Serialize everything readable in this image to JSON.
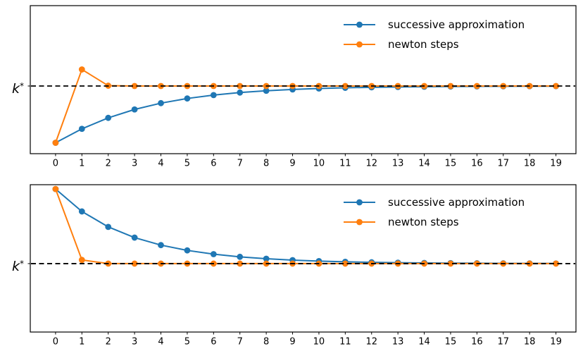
{
  "colors": {
    "successive_approximation": "#1f77b4",
    "newton_steps": "#ff7f0e",
    "reference_line": "#000000",
    "axes": "#000000",
    "background": "#ffffff"
  },
  "chart_data": [
    {
      "type": "line",
      "subplot": "top",
      "title": "",
      "xlabel": "",
      "ylabel": "k*",
      "ylabel_base": "k",
      "ylabel_sup": "*",
      "x": [
        0,
        1,
        2,
        3,
        4,
        5,
        6,
        7,
        8,
        9,
        10,
        11,
        12,
        13,
        14,
        15,
        16,
        17,
        18,
        19
      ],
      "series": [
        {
          "name": "successive approximation",
          "color_key": "successive_approximation",
          "marker": "circle",
          "values": [
            0.8,
            1.0412,
            1.232,
            1.3779,
            1.4873,
            1.5683,
            1.6277,
            1.671,
            1.7025,
            1.7254,
            1.7419,
            1.7538,
            1.7624,
            1.7686,
            1.7731,
            1.7764,
            1.7787,
            1.7804,
            1.7816,
            1.7824
          ]
        },
        {
          "name": "newton steps",
          "color_key": "newton_steps",
          "marker": "circle",
          "values": [
            0.8,
            2.0719,
            1.7903,
            1.7847,
            1.7847,
            1.7847,
            1.7847,
            1.7847,
            1.7847,
            1.7847,
            1.7847,
            1.7847,
            1.7847,
            1.7847,
            1.7847,
            1.7847,
            1.7847,
            1.7847,
            1.7847,
            1.7847
          ]
        }
      ],
      "reference_line": {
        "value": 1.7847,
        "style": "dashed",
        "color": "#000000",
        "label": "k*"
      },
      "xlim": [
        -0.96,
        19.76
      ],
      "ylim": [
        0.61,
        3.18
      ],
      "grid": false,
      "legend": {
        "position": "upper right",
        "frame": false,
        "entries": [
          "successive approximation",
          "newton steps"
        ]
      }
    },
    {
      "type": "line",
      "subplot": "bottom",
      "title": "",
      "xlabel": "",
      "ylabel": "k*",
      "ylabel_base": "k",
      "ylabel_sup": "*",
      "x": [
        0,
        1,
        2,
        3,
        4,
        5,
        6,
        7,
        8,
        9,
        10,
        11,
        12,
        13,
        14,
        15,
        16,
        17,
        18,
        19
      ],
      "series": [
        {
          "name": "successive approximation",
          "color_key": "successive_approximation",
          "marker": "circle",
          "values": [
            3.0,
            2.6342,
            2.3828,
            2.2082,
            2.0859,
            2.0,
            1.9387,
            1.895,
            1.8639,
            1.8416,
            1.8256,
            1.8141,
            1.8059,
            1.7999,
            1.7957,
            1.7926,
            1.7904,
            1.7888,
            1.7877,
            1.7869
          ]
        },
        {
          "name": "newton steps",
          "color_key": "newton_steps",
          "marker": "circle",
          "values": [
            3.0,
            1.8446,
            1.7849,
            1.7847,
            1.7847,
            1.7847,
            1.7847,
            1.7847,
            1.7847,
            1.7847,
            1.7847,
            1.7847,
            1.7847,
            1.7847,
            1.7847,
            1.7847,
            1.7847,
            1.7847,
            1.7847,
            1.7847
          ]
        }
      ],
      "reference_line": {
        "value": 1.7847,
        "style": "dashed",
        "color": "#000000",
        "label": "k*"
      },
      "xlim": [
        -0.96,
        19.76
      ],
      "ylim": [
        0.67,
        3.07
      ],
      "grid": false,
      "legend": {
        "position": "upper right",
        "frame": false,
        "entries": [
          "successive approximation",
          "newton steps"
        ]
      }
    }
  ]
}
